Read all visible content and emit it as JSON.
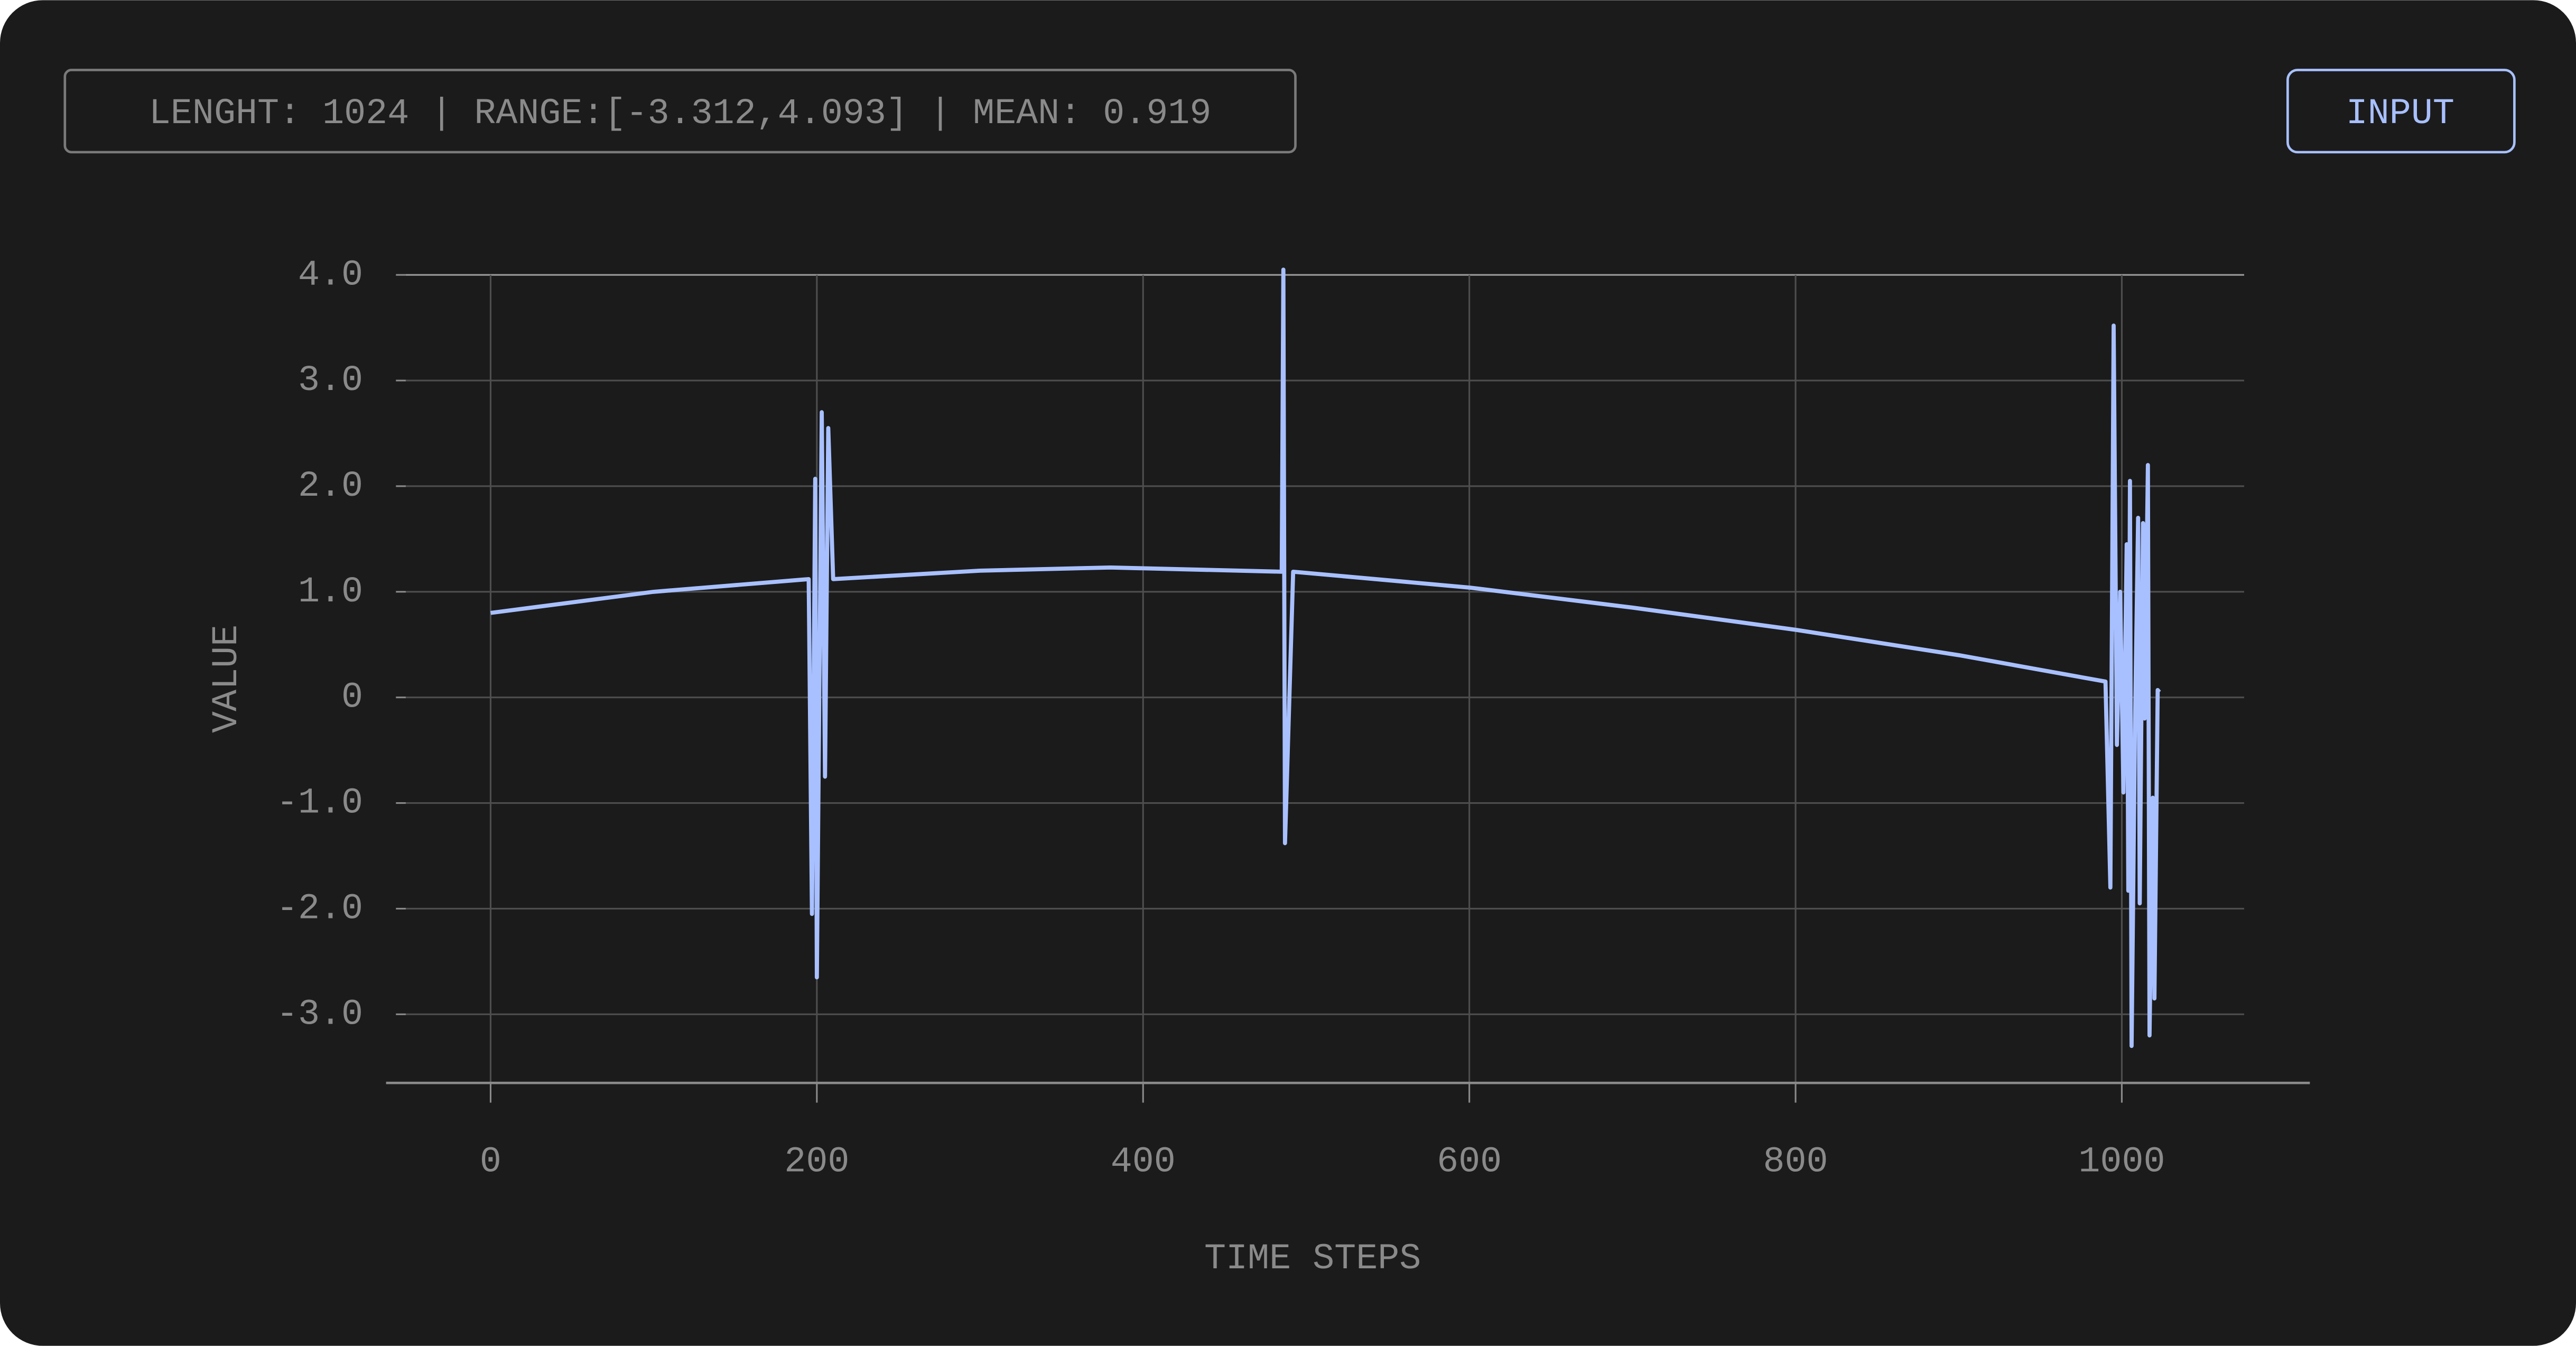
{
  "header": {
    "stats": "LENGHT: 1024 | RANGE:[-3.312,4.093] | MEAN: 0.919",
    "button": "INPUT"
  },
  "chart_data": {
    "type": "line",
    "xlabel": "TIME STEPS",
    "ylabel": "VALUE",
    "x": [
      0,
      100,
      195,
      197,
      199,
      200,
      203,
      205,
      207,
      210,
      300,
      380,
      485,
      486,
      487,
      492,
      600,
      700,
      800,
      900,
      990,
      993,
      995,
      997,
      999,
      1001,
      1003,
      1004,
      1005,
      1006,
      1008,
      1010,
      1011,
      1013,
      1014,
      1016,
      1017,
      1019,
      1020,
      1022,
      1023
    ],
    "series": [
      {
        "name": "input",
        "color": "#a8c0ff",
        "values": [
          0.8,
          1.0,
          1.12,
          -2.05,
          2.07,
          -2.65,
          2.7,
          -0.75,
          2.55,
          1.12,
          1.2,
          1.23,
          1.19,
          4.05,
          -1.38,
          1.19,
          1.04,
          0.85,
          0.64,
          0.4,
          0.15,
          -1.8,
          3.52,
          -0.45,
          1.0,
          -0.9,
          1.45,
          -1.83,
          2.05,
          -3.3,
          -0.35,
          1.7,
          -1.95,
          1.65,
          -0.2,
          2.2,
          -3.2,
          -0.95,
          -2.85,
          0.07,
          0.05
        ]
      }
    ],
    "xlim": [
      -52,
      1075
    ],
    "ylim": [
      -3.65,
      4.05
    ],
    "xticks": [
      0,
      200,
      400,
      600,
      800,
      1000
    ],
    "yticks": [
      {
        "value": 4,
        "label": "4.0"
      },
      {
        "value": 3,
        "label": "3.0"
      },
      {
        "value": 2,
        "label": "2.0"
      },
      {
        "value": 1,
        "label": "1.0"
      },
      0,
      {
        "value": -1,
        "label": "-1.0"
      },
      {
        "value": -2,
        "label": "-2.0"
      },
      {
        "value": -3,
        "label": "-3.0"
      }
    ],
    "grid": true
  }
}
